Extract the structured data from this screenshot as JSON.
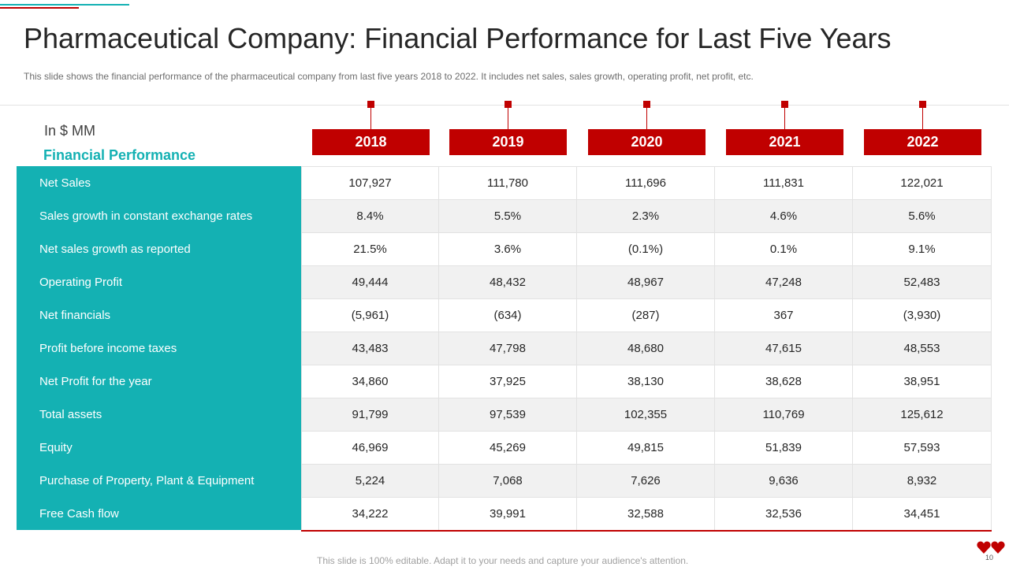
{
  "slide": {
    "title": "Pharmaceutical Company: Financial Performance for Last Five Years",
    "subtitle": "This slide shows the financial performance  of the pharmaceutical company from last five years 2018 to 2022. It includes net sales, sales growth, operating profit, net profit, etc.",
    "unit_label": "In $ MM",
    "section_heading": "Financial Performance",
    "footer": "This slide is 100% editable. Adapt it to your needs and capture your audience's attention.",
    "page_number": "10"
  },
  "colors": {
    "teal": "#14b1b3",
    "red": "#c00000"
  },
  "table": {
    "years": [
      "2018",
      "2019",
      "2020",
      "2021",
      "2022"
    ],
    "rows": [
      {
        "label": "Net Sales",
        "values": [
          "107,927",
          "111,780",
          "111,696",
          "111,831",
          "122,021"
        ]
      },
      {
        "label": "Sales growth in constant exchange rates",
        "values": [
          "8.4%",
          "5.5%",
          "2.3%",
          "4.6%",
          "5.6%"
        ]
      },
      {
        "label": "Net sales growth as reported",
        "values": [
          "21.5%",
          "3.6%",
          "(0.1%)",
          "0.1%",
          "9.1%"
        ]
      },
      {
        "label": "Operating Profit",
        "values": [
          "49,444",
          "48,432",
          "48,967",
          "47,248",
          "52,483"
        ]
      },
      {
        "label": "Net financials",
        "values": [
          "(5,961)",
          "(634)",
          "(287)",
          "367",
          "(3,930)"
        ]
      },
      {
        "label": "Profit before income taxes",
        "values": [
          "43,483",
          "47,798",
          "48,680",
          "47,615",
          "48,553"
        ]
      },
      {
        "label": "Net Profit for the year",
        "values": [
          "34,860",
          "37,925",
          "38,130",
          "38,628",
          "38,951"
        ]
      },
      {
        "label": "Total assets",
        "values": [
          "91,799",
          "97,539",
          "102,355",
          "110,769",
          "125,612"
        ]
      },
      {
        "label": "Equity",
        "values": [
          "46,969",
          "45,269",
          "49,815",
          "51,839",
          "57,593"
        ]
      },
      {
        "label": "Purchase of Property, Plant & Equipment",
        "values": [
          "5,224",
          "7,068",
          "7,626",
          "9,636",
          "8,932"
        ]
      },
      {
        "label": "Free Cash flow",
        "values": [
          "34,222",
          "39,991",
          "32,588",
          "32,536",
          "34,451"
        ]
      }
    ]
  }
}
